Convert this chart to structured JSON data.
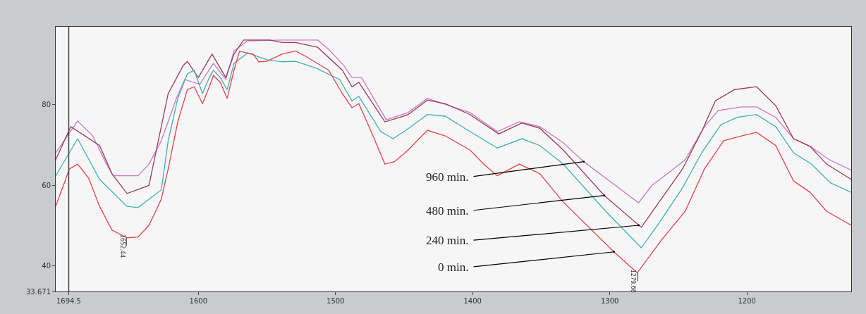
{
  "chart_data": {
    "type": "line",
    "series": [
      {
        "color": "#c878c8",
        "x": [
          1704,
          1688,
          1677,
          1667,
          1662,
          1652,
          1644,
          1636,
          1627,
          1616,
          1610,
          1599,
          1589,
          1580,
          1574,
          1564,
          1539,
          1513,
          1505,
          1494,
          1488,
          1481,
          1463,
          1447,
          1433,
          1402,
          1382,
          1366,
          1351,
          1334,
          1319,
          1279,
          1269,
          1258,
          1245,
          1231,
          1221,
          1204,
          1193,
          1179,
          1166,
          1154,
          1140,
          1124
        ],
        "values": [
          68.1,
          76.0,
          72.3,
          65.3,
          62.4,
          62.4,
          62.4,
          65.3,
          71.1,
          81.6,
          86.3,
          85.1,
          90.3,
          86.3,
          93.4,
          95.9,
          96.1,
          96.1,
          93.8,
          89.8,
          86.8,
          86.8,
          76.3,
          78.1,
          81.6,
          78.1,
          73.4,
          75.8,
          74.6,
          70.6,
          65.9,
          55.7,
          60.1,
          62.9,
          66.4,
          74.6,
          78.6,
          79.5,
          79.5,
          76.9,
          71.6,
          69.7,
          66.4,
          63.8
        ]
      },
      {
        "color": "#9a3a55",
        "x": [
          1704,
          1693,
          1672,
          1663,
          1652,
          1636,
          1622,
          1611,
          1608,
          1600,
          1590,
          1580,
          1574,
          1567,
          1548,
          1539,
          1529,
          1513,
          1495,
          1488,
          1483,
          1464,
          1453,
          1447,
          1433,
          1420,
          1402,
          1381,
          1364,
          1351,
          1334,
          1304,
          1277,
          1265,
          1247,
          1233,
          1223,
          1209,
          1193,
          1179,
          1166,
          1154,
          1142,
          1124
        ],
        "values": [
          66.4,
          74.6,
          69.9,
          62.9,
          58.0,
          60.0,
          82.8,
          89.8,
          90.8,
          86.8,
          92.6,
          86.8,
          92.6,
          96.1,
          96.1,
          95.5,
          95.5,
          94.3,
          88.6,
          84.5,
          85.6,
          75.8,
          76.9,
          77.6,
          81.2,
          80.3,
          77.6,
          72.8,
          75.5,
          74.2,
          68.8,
          57.5,
          49.6,
          55.4,
          64.1,
          73.4,
          81.0,
          83.8,
          84.5,
          79.8,
          71.6,
          69.7,
          65.3,
          61.5
        ]
      },
      {
        "color": "#40b0b0",
        "x": [
          1704,
          1688,
          1672,
          1652,
          1644,
          1627,
          1622,
          1615,
          1608,
          1603,
          1597,
          1592,
          1589,
          1584,
          1579,
          1574,
          1564,
          1550,
          1539,
          1529,
          1514,
          1497,
          1488,
          1483,
          1467,
          1458,
          1447,
          1433,
          1420,
          1402,
          1382,
          1364,
          1351,
          1334,
          1303,
          1277,
          1264,
          1247,
          1233,
          1219,
          1207,
          1193,
          1179,
          1166,
          1153,
          1139,
          1124
        ],
        "values": [
          62.4,
          71.6,
          61.5,
          54.8,
          54.5,
          58.9,
          71.1,
          81.6,
          87.7,
          88.6,
          82.8,
          86.8,
          88.6,
          86.8,
          83.8,
          90.3,
          92.9,
          91.2,
          90.7,
          90.8,
          89.1,
          86.3,
          81.0,
          82.1,
          73.4,
          71.6,
          74.1,
          77.6,
          77.2,
          73.4,
          69.3,
          71.6,
          69.9,
          65.3,
          53.6,
          44.5,
          50.7,
          59.4,
          68.1,
          75.1,
          76.9,
          77.6,
          74.6,
          68.1,
          65.3,
          60.6,
          58.3
        ]
      },
      {
        "color": "#e8404a",
        "x": [
          1704,
          1694,
          1688,
          1680,
          1672,
          1663,
          1652,
          1644,
          1636,
          1627,
          1622,
          1615,
          1608,
          1603,
          1597,
          1592,
          1589,
          1584,
          1579,
          1574,
          1570,
          1560,
          1556,
          1550,
          1539,
          1529,
          1522,
          1505,
          1495,
          1488,
          1483,
          1474,
          1464,
          1457,
          1447,
          1433,
          1420,
          1402,
          1392,
          1382,
          1366,
          1351,
          1334,
          1297,
          1280,
          1262,
          1245,
          1231,
          1217,
          1207,
          1193,
          1179,
          1166,
          1154,
          1142,
          1124
        ],
        "values": [
          54.8,
          64.1,
          65.3,
          61.8,
          54.8,
          48.9,
          47.0,
          47.2,
          50.1,
          56.6,
          64.1,
          75.8,
          83.8,
          84.5,
          80.3,
          84.5,
          87.3,
          85.6,
          81.6,
          88.6,
          93.3,
          92.6,
          90.7,
          90.8,
          92.6,
          93.4,
          92.1,
          88.6,
          82.8,
          79.3,
          80.3,
          73.4,
          65.3,
          65.9,
          68.8,
          73.7,
          72.3,
          68.8,
          65.3,
          62.4,
          65.3,
          62.9,
          55.9,
          43.5,
          38.3,
          46.6,
          53.6,
          64.1,
          71.1,
          72.0,
          73.2,
          69.9,
          61.1,
          58.3,
          53.6,
          50.1
        ]
      }
    ],
    "xlim": [
      1704,
      1124
    ],
    "ylim": [
      33.671,
      99.4
    ],
    "xticks": [
      1694.5,
      1600,
      1500,
      1400,
      1300,
      1200
    ],
    "yticks": [
      33.671,
      40,
      60,
      80
    ],
    "ref_lines": [
      {
        "axis": "x",
        "value": 1694.5,
        "color": "#404040"
      }
    ],
    "annotations": [
      {
        "text": "960 min.",
        "x": 1319,
        "y": 65.9
      },
      {
        "text": "480 min.",
        "x": 1304,
        "y": 57.5
      },
      {
        "text": "240 min.",
        "x": 1279,
        "y": 50.1
      },
      {
        "text": "0 min.",
        "x": 1297,
        "y": 43.5
      },
      {
        "text": "1652.44",
        "x": 1652.44,
        "y": 47.0
      },
      {
        "text": "1279.66",
        "x": 1279.66,
        "y": 38.3
      }
    ],
    "grid": false,
    "marker": "none",
    "line_style": "solid"
  }
}
